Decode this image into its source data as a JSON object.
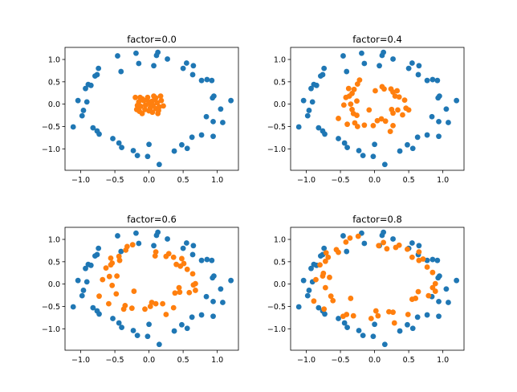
{
  "chart_data": [
    {
      "type": "scatter",
      "title": "factor=0.0",
      "xlim": [
        -1.23,
        1.31
      ],
      "ylim": [
        -1.48,
        1.27
      ],
      "xticks": [
        "-1.0",
        "-0.5",
        "0.0",
        "0.5",
        "1.0"
      ],
      "yticks": [
        "-1.0",
        "-0.5",
        "0.0",
        "0.5",
        "1.0"
      ],
      "grid": false,
      "colors": [
        "#1f77b4",
        "#ff7f0e"
      ],
      "series_ref": "outer",
      "inner": [
        [
          -0.2,
          0.15
        ],
        [
          -0.13,
          0.15
        ],
        [
          0.07,
          0.18
        ],
        [
          0.17,
          0.18
        ],
        [
          -0.18,
          -0.12
        ],
        [
          -0.1,
          -0.21
        ],
        [
          0.13,
          -0.21
        ],
        [
          0.21,
          -0.04
        ],
        [
          -0.15,
          0.05
        ],
        [
          -0.12,
          -0.05
        ],
        [
          -0.08,
          0.08
        ],
        [
          -0.05,
          -0.02
        ],
        [
          -0.03,
          0.1
        ],
        [
          0.0,
          0.02
        ],
        [
          0.02,
          -0.08
        ],
        [
          0.04,
          0.06
        ],
        [
          0.06,
          -0.03
        ],
        [
          0.08,
          0.1
        ],
        [
          0.1,
          -0.1
        ],
        [
          0.12,
          0.03
        ],
        [
          0.15,
          -0.06
        ],
        [
          -0.06,
          -0.12
        ],
        [
          0.0,
          -0.15
        ],
        [
          0.05,
          -0.18
        ],
        [
          -0.17,
          -0.03
        ],
        [
          0.18,
          0.08
        ],
        [
          -0.1,
          0.12
        ],
        [
          0.1,
          0.14
        ],
        [
          -0.02,
          0.15
        ],
        [
          0.14,
          -0.14
        ],
        [
          -0.14,
          -0.16
        ],
        [
          0.03,
          0.0
        ]
      ]
    },
    {
      "type": "scatter",
      "title": "factor=0.4",
      "xlim": [
        -1.23,
        1.31
      ],
      "ylim": [
        -1.48,
        1.27
      ],
      "xticks": [
        "-1.0",
        "-0.5",
        "0.0",
        "0.5",
        "1.0"
      ],
      "yticks": [
        "-1.0",
        "-0.5",
        "0.0",
        "0.5",
        "1.0"
      ],
      "grid": false,
      "colors": [
        "#1f77b4",
        "#ff7f0e"
      ],
      "series_ref": "outer",
      "inner": [
        [
          -0.22,
          0.54
        ],
        [
          -0.25,
          0.45
        ],
        [
          -0.38,
          0.35
        ],
        [
          -0.3,
          0.33
        ],
        [
          -0.33,
          0.24
        ],
        [
          -0.42,
          0.15
        ],
        [
          -0.37,
          0.18
        ],
        [
          -0.26,
          0.07
        ],
        [
          -0.45,
          -0.02
        ],
        [
          -0.35,
          0.0
        ],
        [
          -0.33,
          -0.12
        ],
        [
          -0.31,
          -0.21
        ],
        [
          -0.26,
          -0.25
        ],
        [
          -0.53,
          -0.32
        ],
        [
          -0.4,
          -0.45
        ],
        [
          -0.29,
          -0.42
        ],
        [
          -0.25,
          -0.5
        ],
        [
          -0.15,
          -0.47
        ],
        [
          -0.08,
          -0.13
        ],
        [
          -0.02,
          -0.48
        ],
        [
          0.04,
          -0.37
        ],
        [
          0.1,
          -0.33
        ],
        [
          0.16,
          -0.38
        ],
        [
          0.27,
          -0.48
        ],
        [
          0.23,
          -0.61
        ],
        [
          0.01,
          0.3
        ],
        [
          0.11,
          0.39
        ],
        [
          0.14,
          0.34
        ],
        [
          0.24,
          0.34
        ],
        [
          0.27,
          0.27
        ],
        [
          0.33,
          0.3
        ],
        [
          0.3,
          0.18
        ],
        [
          0.36,
          0.16
        ],
        [
          0.44,
          0.09
        ],
        [
          0.25,
          -0.12
        ],
        [
          0.27,
          -0.2
        ],
        [
          0.34,
          -0.13
        ],
        [
          0.41,
          -0.24
        ],
        [
          0.46,
          -0.09
        ],
        [
          0.5,
          -0.13
        ]
      ]
    },
    {
      "type": "scatter",
      "title": "factor=0.6",
      "xlim": [
        -1.23,
        1.31
      ],
      "ylim": [
        -1.48,
        1.27
      ],
      "xticks": [
        "-1.0",
        "-0.5",
        "0.0",
        "0.5",
        "1.0"
      ],
      "yticks": [
        "-1.0",
        "-0.5",
        "0.0",
        "0.5",
        "1.0"
      ],
      "grid": false,
      "colors": [
        "#1f77b4",
        "#ff7f0e"
      ],
      "series_ref": "outer",
      "inner": [
        [
          -0.24,
          0.88
        ],
        [
          -0.32,
          0.84
        ],
        [
          -0.34,
          0.76
        ],
        [
          0.1,
          0.72
        ],
        [
          0.09,
          0.63
        ],
        [
          0.29,
          0.68
        ],
        [
          0.25,
          0.62
        ],
        [
          0.36,
          0.6
        ],
        [
          0.48,
          0.57
        ],
        [
          0.51,
          0.46
        ],
        [
          0.4,
          0.44
        ],
        [
          0.46,
          0.4
        ],
        [
          0.56,
          0.33
        ],
        [
          0.64,
          0.23
        ],
        [
          0.68,
          0.01
        ],
        [
          0.65,
          -0.02
        ],
        [
          0.68,
          -0.14
        ],
        [
          0.59,
          -0.19
        ],
        [
          0.44,
          -0.08
        ],
        [
          0.45,
          -0.18
        ],
        [
          0.38,
          -0.2
        ],
        [
          0.36,
          -0.53
        ],
        [
          0.25,
          -0.68
        ],
        [
          0.2,
          -0.44
        ],
        [
          0.1,
          -0.44
        ],
        [
          0.04,
          -0.41
        ],
        [
          0.02,
          -0.5
        ],
        [
          -0.06,
          -0.56
        ],
        [
          -0.25,
          -0.54
        ],
        [
          -0.35,
          -0.48
        ],
        [
          -0.37,
          -0.56
        ],
        [
          -0.22,
          -0.16
        ],
        [
          -0.59,
          -0.44
        ],
        [
          -0.73,
          -0.27
        ],
        [
          -0.48,
          -0.22
        ],
        [
          -0.54,
          -0.03
        ],
        [
          -0.68,
          0.1
        ],
        [
          -0.58,
          0.17
        ],
        [
          -0.47,
          0.18
        ],
        [
          -0.63,
          0.36
        ],
        [
          -0.56,
          0.43
        ],
        [
          -0.54,
          0.47
        ],
        [
          -0.56,
          0.58
        ],
        [
          -0.43,
          0.53
        ],
        [
          -0.44,
          0.62
        ]
      ]
    },
    {
      "type": "scatter",
      "title": "factor=0.8",
      "xlim": [
        -1.23,
        1.31
      ],
      "ylim": [
        -1.48,
        1.27
      ],
      "xticks": [
        "-1.0",
        "-0.5",
        "0.0",
        "0.5",
        "1.0"
      ],
      "yticks": [
        "-1.0",
        "-0.5",
        "0.0",
        "0.5",
        "1.0"
      ],
      "grid": false,
      "colors": [
        "#1f77b4",
        "#ff7f0e"
      ],
      "series_ref": "outer",
      "inner": [
        [
          -0.42,
          0.94
        ],
        [
          -0.36,
          1.03
        ],
        [
          -0.24,
          1.07
        ],
        [
          0.06,
          0.86
        ],
        [
          0.13,
          0.93
        ],
        [
          0.18,
          0.79
        ],
        [
          0.31,
          0.82
        ],
        [
          0.36,
          0.87
        ],
        [
          0.48,
          0.78
        ],
        [
          0.65,
          0.72
        ],
        [
          0.55,
          0.6
        ],
        [
          0.65,
          0.53
        ],
        [
          0.71,
          0.56
        ],
        [
          0.77,
          0.38
        ],
        [
          0.85,
          0.26
        ],
        [
          0.89,
          0.01
        ],
        [
          0.85,
          -0.08
        ],
        [
          0.89,
          -0.16
        ],
        [
          0.79,
          -0.26
        ],
        [
          0.64,
          -0.17
        ],
        [
          0.6,
          -0.32
        ],
        [
          0.55,
          -0.34
        ],
        [
          0.49,
          -0.68
        ],
        [
          0.29,
          -0.87
        ],
        [
          0.27,
          -0.63
        ],
        [
          0.21,
          -0.62
        ],
        [
          0.02,
          -0.6
        ],
        [
          0.05,
          -0.71
        ],
        [
          -0.05,
          -0.77
        ],
        [
          -0.31,
          -0.71
        ],
        [
          -0.41,
          -0.68
        ],
        [
          -0.46,
          -0.72
        ],
        [
          -0.74,
          -0.56
        ],
        [
          -0.89,
          -0.38
        ],
        [
          -0.61,
          -0.37
        ],
        [
          -0.64,
          -0.27
        ],
        [
          -0.35,
          -0.32
        ],
        [
          -0.72,
          -0.08
        ],
        [
          -0.86,
          0.1
        ],
        [
          -0.76,
          0.18
        ],
        [
          -0.75,
          0.24
        ],
        [
          -0.66,
          0.15
        ],
        [
          -0.8,
          0.43
        ],
        [
          -0.72,
          0.51
        ],
        [
          -0.68,
          0.6
        ],
        [
          -0.71,
          0.7
        ],
        [
          -0.56,
          0.77
        ],
        [
          -0.53,
          0.71
        ]
      ]
    }
  ],
  "outer": [
    [
      -0.46,
      1.08
    ],
    [
      -0.19,
      1.14
    ],
    [
      0.13,
      1.16
    ],
    [
      0.11,
      1.09
    ],
    [
      0.27,
      1.01
    ],
    [
      -0.15,
      0.91
    ],
    [
      0.07,
      0.86
    ],
    [
      0.55,
      0.92
    ],
    [
      0.5,
      0.8
    ],
    [
      0.65,
      0.86
    ],
    [
      -0.74,
      0.8
    ],
    [
      -0.41,
      0.73
    ],
    [
      -0.76,
      0.66
    ],
    [
      -0.79,
      0.63
    ],
    [
      0.64,
      0.66
    ],
    [
      0.77,
      0.53
    ],
    [
      0.85,
      0.55
    ],
    [
      0.92,
      0.53
    ],
    [
      -0.89,
      0.44
    ],
    [
      -0.85,
      0.42
    ],
    [
      -0.93,
      0.35
    ],
    [
      0.95,
      0.18
    ],
    [
      0.93,
      0.14
    ],
    [
      1.2,
      0.08
    ],
    [
      -1.04,
      0.08
    ],
    [
      -0.91,
      0.05
    ],
    [
      -0.96,
      -0.14
    ],
    [
      -0.98,
      -0.26
    ],
    [
      1.05,
      -0.11
    ],
    [
      0.84,
      -0.28
    ],
    [
      0.94,
      -0.39
    ],
    [
      1.08,
      -0.41
    ],
    [
      -1.11,
      -0.51
    ],
    [
      -0.82,
      -0.53
    ],
    [
      -0.76,
      -0.6
    ],
    [
      -0.73,
      -0.67
    ],
    [
      -0.53,
      -0.77
    ],
    [
      0.77,
      -0.69
    ],
    [
      0.94,
      -0.72
    ],
    [
      0.63,
      -0.74
    ],
    [
      -0.44,
      -0.87
    ],
    [
      -0.4,
      -0.97
    ],
    [
      0.0,
      -0.9
    ],
    [
      0.48,
      -0.91
    ],
    [
      0.56,
      -0.99
    ],
    [
      -0.23,
      -1.04
    ],
    [
      0.37,
      -1.05
    ],
    [
      -0.17,
      -1.15
    ],
    [
      -0.02,
      -1.17
    ],
    [
      0.15,
      -1.35
    ]
  ]
}
